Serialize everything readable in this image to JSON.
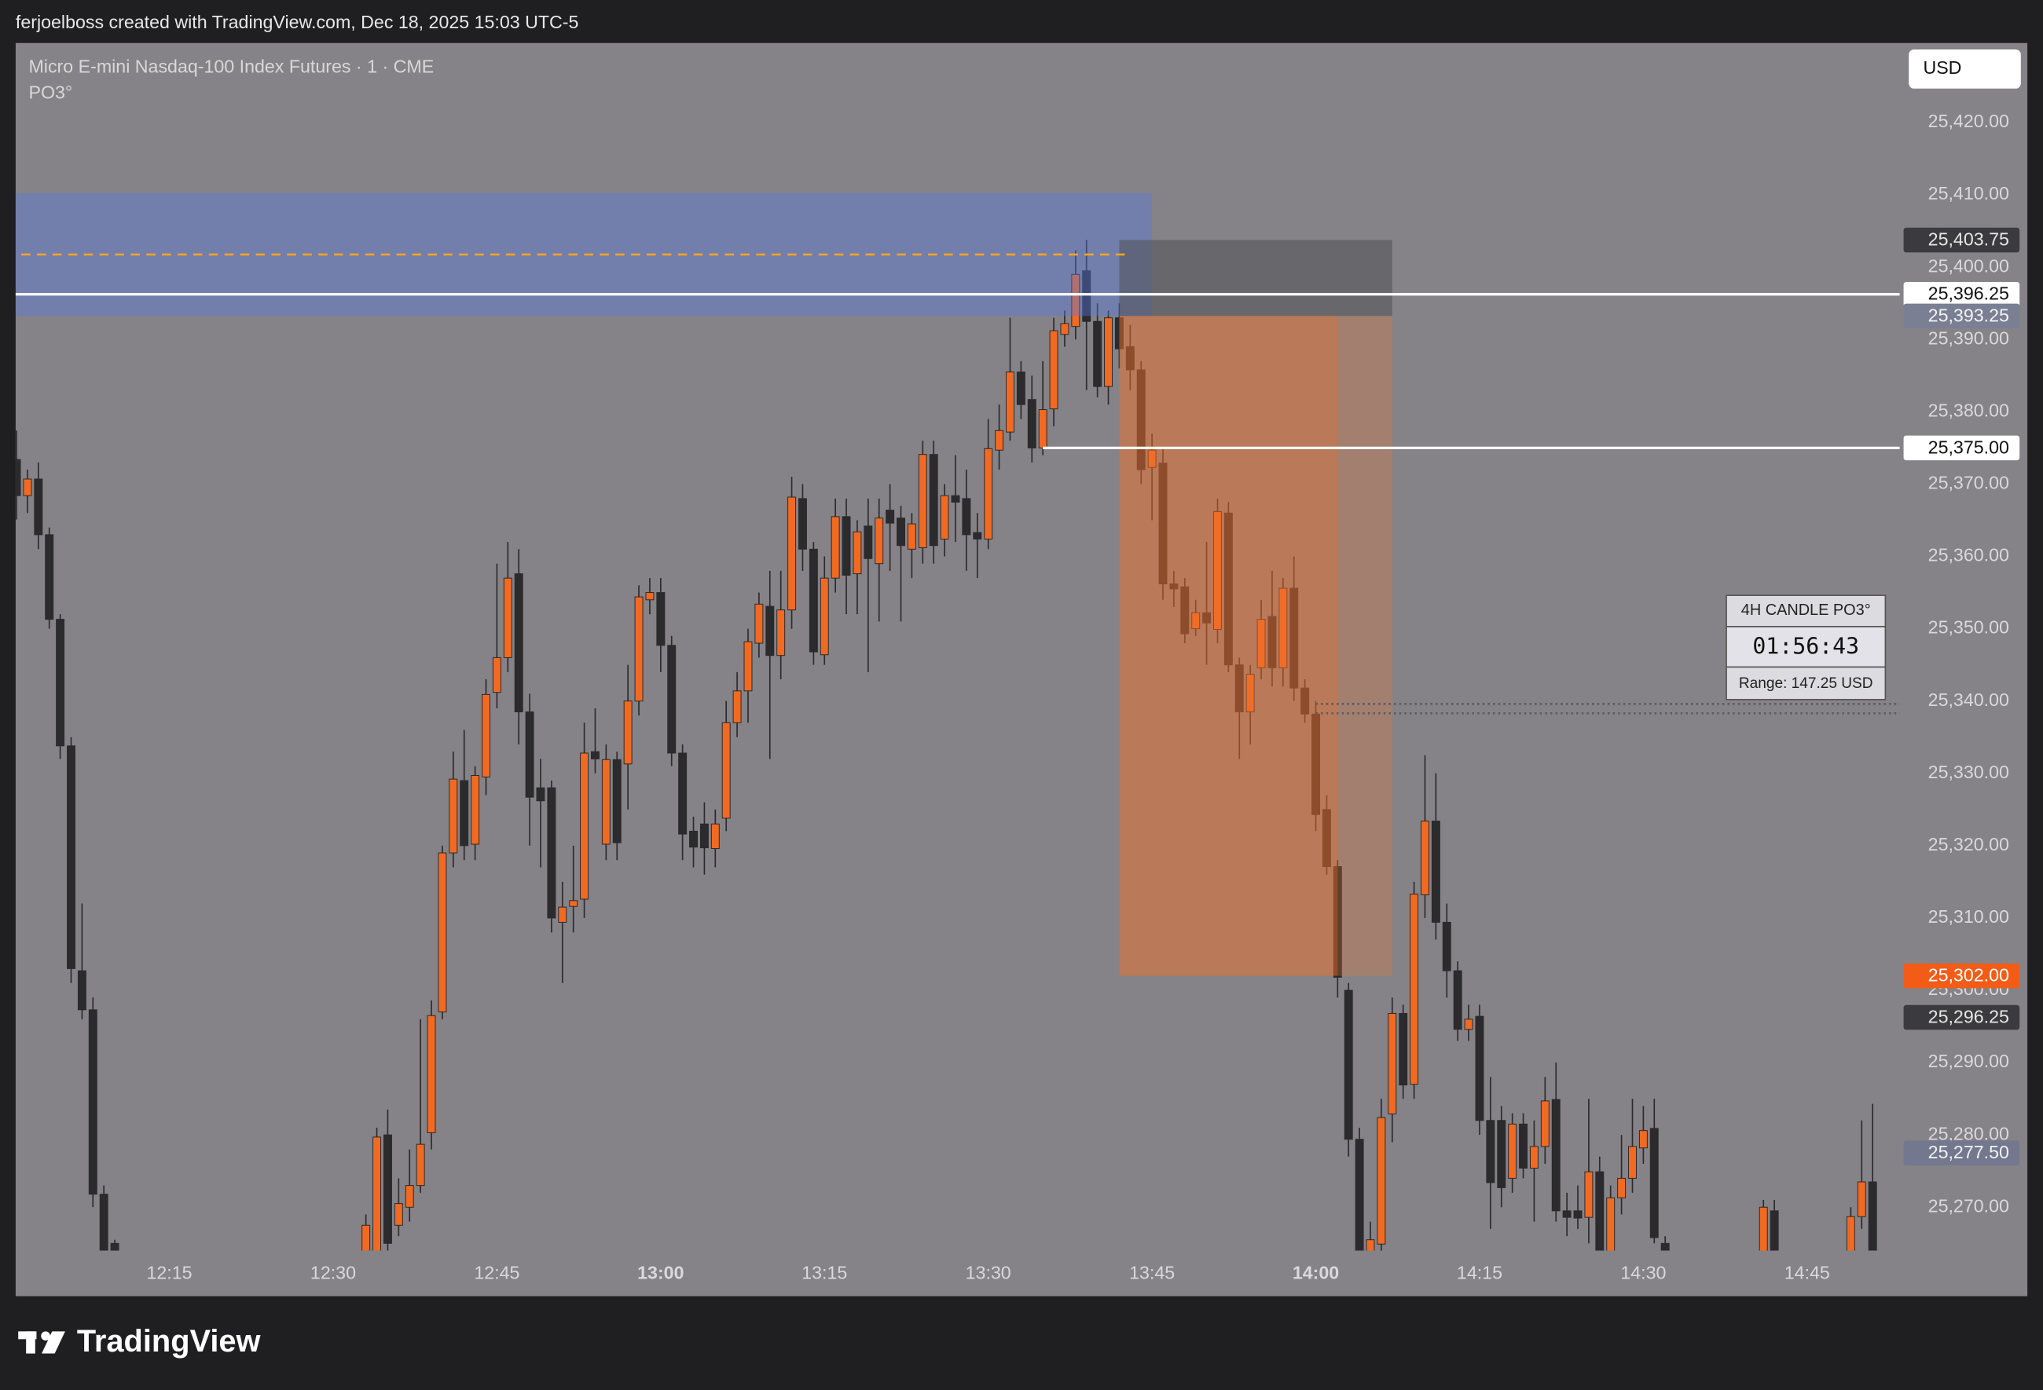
{
  "header": {
    "text": "ferjoelboss created with TradingView.com, Dec 18, 2025 15:03 UTC-5"
  },
  "legend": {
    "symbol": "Micro E-mini Nasdaq-100 Index Futures · 1 · CME",
    "indicator": "PO3°"
  },
  "currency_button": "USD",
  "indicator_panel": {
    "title": "4H CANDLE PO3°",
    "timer": "01:56:43",
    "range": "Range: 147.25 USD"
  },
  "footer": {
    "brand": "TradingView"
  },
  "chart_data": {
    "type": "candlestick",
    "up_color": "#f26a21",
    "down_color": "#2b2a2c",
    "wick_color": "#2b2a2c",
    "xlim": [
      "12:00",
      "14:53"
    ],
    "ylim": [
      25264,
      25431
    ],
    "grid": false,
    "xticks": [
      "12:15",
      "12:30",
      "12:45",
      "13:00",
      "13:15",
      "13:30",
      "13:45",
      "14:00",
      "14:15",
      "14:30",
      "14:45"
    ],
    "yticks": [
      {
        "value": 25270,
        "label": "25,270.00"
      },
      {
        "value": 25280,
        "label": "25,280.00"
      },
      {
        "value": 25290,
        "label": "25,290.00"
      },
      {
        "value": 25300,
        "label": "25,300.00"
      },
      {
        "value": 25310,
        "label": "25,310.00"
      },
      {
        "value": 25320,
        "label": "25,320.00"
      },
      {
        "value": 25330,
        "label": "25,330.00"
      },
      {
        "value": 25340,
        "label": "25,340.00"
      },
      {
        "value": 25350,
        "label": "25,350.00"
      },
      {
        "value": 25360,
        "label": "25,360.00"
      },
      {
        "value": 25370,
        "label": "25,370.00"
      },
      {
        "value": 25380,
        "label": "25,380.00"
      },
      {
        "value": 25390,
        "label": "25,390.00"
      },
      {
        "value": 25400,
        "label": "25,400.00"
      },
      {
        "value": 25410,
        "label": "25,410.00"
      },
      {
        "value": 25420,
        "label": "25,420.00"
      }
    ],
    "x": [
      "12:01",
      "12:02",
      "12:03",
      "12:04",
      "12:05",
      "12:06",
      "12:07",
      "12:08",
      "12:09",
      "12:10",
      "12:33",
      "12:34",
      "12:35",
      "12:36",
      "12:37",
      "12:38",
      "12:39",
      "12:40",
      "12:41",
      "12:42",
      "12:43",
      "12:44",
      "12:45",
      "12:46",
      "12:47",
      "12:48",
      "12:49",
      "12:50",
      "12:51",
      "12:52",
      "12:53",
      "12:54",
      "12:55",
      "12:56",
      "12:57",
      "12:58",
      "12:59",
      "13:00",
      "13:01",
      "13:02",
      "13:03",
      "13:04",
      "13:05",
      "13:06",
      "13:07",
      "13:08",
      "13:09",
      "13:10",
      "13:11",
      "13:12",
      "13:13",
      "13:14",
      "13:15",
      "13:16",
      "13:17",
      "13:18",
      "13:19",
      "13:20",
      "13:21",
      "13:22",
      "13:23",
      "13:24",
      "13:25",
      "13:26",
      "13:27",
      "13:28",
      "13:29",
      "13:30",
      "13:31",
      "13:32",
      "13:33",
      "13:34",
      "13:35",
      "13:36",
      "13:37",
      "13:38",
      "13:39",
      "13:40",
      "13:41",
      "13:42",
      "13:43",
      "13:44",
      "13:45",
      "13:46",
      "13:47",
      "13:48",
      "13:49",
      "13:50",
      "13:51",
      "13:52",
      "13:53",
      "13:54",
      "13:55",
      "13:56",
      "13:57",
      "13:58",
      "13:59",
      "14:00",
      "14:01",
      "14:02",
      "14:03",
      "14:04",
      "14:05",
      "14:06",
      "14:07",
      "14:08",
      "14:09",
      "14:10",
      "14:11",
      "14:12",
      "14:13",
      "14:14",
      "14:15",
      "14:16",
      "14:17",
      "14:18",
      "14:19",
      "14:20",
      "14:21",
      "14:22",
      "14:23",
      "14:24",
      "14:25",
      "14:26",
      "14:27",
      "14:28",
      "14:29",
      "14:30",
      "14:31",
      "14:32",
      "14:41",
      "14:42",
      "14:49",
      "14:50",
      "14:51"
    ],
    "ohlc": [
      [
        25373.4,
        25377.4,
        25365.1,
        25368.4
      ],
      [
        25368.4,
        25372,
        25366,
        25370.7
      ],
      [
        25370.7,
        25373,
        25361,
        25363
      ],
      [
        25363,
        25364,
        25350,
        25351.3
      ],
      [
        25351.3,
        25352,
        25332,
        25333.8
      ],
      [
        25333.8,
        25335,
        25301,
        25303
      ],
      [
        25302.7,
        25312,
        25296,
        25297.3
      ],
      [
        25297.3,
        25299,
        25270,
        25271.8
      ],
      [
        25271.8,
        25273,
        25258,
        25262
      ],
      [
        25265,
        25265.5,
        25250,
        25255
      ],
      [
        25255,
        25269,
        25250,
        25267.5
      ],
      [
        25262,
        25281,
        25258,
        25279.7
      ],
      [
        25280,
        25283.5,
        25263,
        25265
      ],
      [
        25267.5,
        25274,
        25266,
        25270.5
      ],
      [
        25270,
        25278,
        25268,
        25273
      ],
      [
        25273,
        25296,
        25272,
        25278.7
      ],
      [
        25280.3,
        25298.6,
        25278,
        25296.5
      ],
      [
        25297,
        25320,
        25296,
        25319
      ],
      [
        25319,
        25333,
        25317,
        25329.2
      ],
      [
        25329,
        25336,
        25318,
        25320
      ],
      [
        25320.2,
        25331,
        25318,
        25329.7
      ],
      [
        25329.5,
        25343,
        25327,
        25340.9
      ],
      [
        25341.2,
        25359,
        25339,
        25346
      ],
      [
        25346,
        25362,
        25344,
        25357
      ],
      [
        25357.6,
        25361,
        25334,
        25338.5
      ],
      [
        25338.5,
        25341,
        25320,
        25326.7
      ],
      [
        25328,
        25332,
        25317,
        25326.2
      ],
      [
        25328,
        25329,
        25308,
        25310
      ],
      [
        25309.4,
        25315,
        25301,
        25311.5
      ],
      [
        25311.6,
        25320,
        25308,
        25312.4
      ],
      [
        25312.6,
        25337,
        25310,
        25332.8
      ],
      [
        25333,
        25339,
        25330,
        25332
      ],
      [
        25320.2,
        25334,
        25318,
        25331.9
      ],
      [
        25331.9,
        25333,
        25318,
        25320.4
      ],
      [
        25331.3,
        25345,
        25325,
        25340
      ],
      [
        25340,
        25356,
        25338,
        25354.4
      ],
      [
        25354,
        25357,
        25352,
        25355
      ],
      [
        25355,
        25357,
        25344,
        25347.7
      ],
      [
        25347.7,
        25349,
        25331,
        25332.8
      ],
      [
        25332.8,
        25334,
        25318,
        25321.6
      ],
      [
        25322,
        25324,
        25317,
        25319.8
      ],
      [
        25323,
        25326,
        25316,
        25319.7
      ],
      [
        25319.6,
        25325,
        25317,
        25323
      ],
      [
        25323.8,
        25340,
        25322,
        25337
      ],
      [
        25337,
        25344,
        25335,
        25341.4
      ],
      [
        25341.4,
        25350,
        25337,
        25348.2
      ],
      [
        25348,
        25355,
        25346,
        25353.4
      ],
      [
        25353.1,
        25358,
        25332,
        25346.3
      ],
      [
        25346.3,
        25358,
        25343,
        25352.6
      ],
      [
        25352.6,
        25371,
        25350,
        25368.2
      ],
      [
        25368,
        25370,
        25358,
        25361
      ],
      [
        25361,
        25362,
        25345,
        25346.8
      ],
      [
        25346.4,
        25360,
        25345,
        25357
      ],
      [
        25357,
        25368,
        25355,
        25365.5
      ],
      [
        25365.5,
        25368,
        25352,
        25357.4
      ],
      [
        25357.6,
        25365,
        25352,
        25363.4
      ],
      [
        25364.2,
        25368,
        25344,
        25359.7
      ],
      [
        25359,
        25368,
        25351,
        25365.3
      ],
      [
        25366.4,
        25370,
        25358,
        25364.6
      ],
      [
        25365.3,
        25367,
        25351,
        25361.5
      ],
      [
        25361,
        25366,
        25357,
        25364.5
      ],
      [
        25361.2,
        25376,
        25359,
        25374.1
      ],
      [
        25374.1,
        25376,
        25359,
        25361.5
      ],
      [
        25362.4,
        25370,
        25360,
        25368.4
      ],
      [
        25368.4,
        25374,
        25362,
        25367.5
      ],
      [
        25368,
        25372,
        25358,
        25363
      ],
      [
        25363.3,
        25366,
        25357,
        25362.4
      ],
      [
        25362.4,
        25379,
        25361,
        25374.9
      ],
      [
        25374.7,
        25381,
        25372,
        25377.4
      ],
      [
        25377.2,
        25393,
        25376,
        25385.5
      ],
      [
        25385.5,
        25387,
        25379,
        25381
      ],
      [
        25381.7,
        25385,
        25373,
        25375
      ],
      [
        25375,
        25387,
        25374,
        25380.3
      ],
      [
        25380.4,
        25393,
        25378,
        25391.2
      ],
      [
        25390.7,
        25394,
        25389,
        25392.2
      ],
      [
        25391.8,
        25402.3,
        25390,
        25399
      ],
      [
        25399.5,
        25403.75,
        25383,
        25392.5
      ],
      [
        25392.5,
        25395,
        25382,
        25383.5
      ],
      [
        25383.5,
        25394,
        25381,
        25393
      ],
      [
        25393,
        25395,
        25386,
        25388.7
      ],
      [
        25389,
        25392,
        25383,
        25385.8
      ],
      [
        25385.8,
        25387,
        25370,
        25372
      ],
      [
        25372.3,
        25377,
        25365,
        25374.7
      ],
      [
        25372.9,
        25375,
        25354,
        25356.2
      ],
      [
        25356.2,
        25358,
        25353,
        25355.5
      ],
      [
        25355.8,
        25357,
        25348,
        25349.3
      ],
      [
        25350,
        25354,
        25349,
        25352.2
      ],
      [
        25352.2,
        25362,
        25345,
        25350.8
      ],
      [
        25349.9,
        25368,
        25348,
        25366.2
      ],
      [
        25366,
        25367.5,
        25344,
        25345
      ],
      [
        25345,
        25346,
        25332,
        25338.5
      ],
      [
        25338.5,
        25345,
        25334,
        25343.7
      ],
      [
        25344.6,
        25354,
        25343,
        25351.3
      ],
      [
        25351.7,
        25358,
        25342,
        25344.6
      ],
      [
        25344.6,
        25357,
        25342,
        25355.6
      ],
      [
        25355.6,
        25360,
        25340,
        25341.8
      ],
      [
        25341.8,
        25343,
        25337,
        25338.2
      ],
      [
        25338.2,
        25340,
        25322,
        25324.3
      ],
      [
        25325,
        25327,
        25316,
        25317.1
      ],
      [
        25317.1,
        25318,
        25299,
        25301.8
      ],
      [
        25300,
        25301,
        25277,
        25279.4
      ],
      [
        25279.4,
        25281,
        25252,
        25258
      ],
      [
        25258,
        25268,
        25255,
        25265.5
      ],
      [
        25264.9,
        25285,
        25263,
        25282.4
      ],
      [
        25282.9,
        25299,
        25279,
        25296.8
      ],
      [
        25296.8,
        25298,
        25285,
        25286.9
      ],
      [
        25287,
        25315,
        25285,
        25313.3
      ],
      [
        25313.2,
        25332.5,
        25310,
        25323.4
      ],
      [
        25323.4,
        25330,
        25307,
        25309.4
      ],
      [
        25309.4,
        25312,
        25299,
        25302.7
      ],
      [
        25302.7,
        25304,
        25293,
        25294.6
      ],
      [
        25294.6,
        25298,
        25293,
        25296
      ],
      [
        25296.4,
        25298,
        25280,
        25282
      ],
      [
        25282,
        25288,
        25267,
        25273.4
      ],
      [
        25282,
        25284,
        25270,
        25272.7
      ],
      [
        25274,
        25283,
        25272,
        25281.5
      ],
      [
        25281.5,
        25283,
        25274,
        25275.4
      ],
      [
        25275.4,
        25282,
        25268,
        25278.4
      ],
      [
        25278.4,
        25288,
        25276,
        25284.7
      ],
      [
        25284.9,
        25290,
        25268,
        25269.5
      ],
      [
        25269.5,
        25272,
        25266,
        25268.6
      ],
      [
        25269.5,
        25273,
        25267,
        25268.5
      ],
      [
        25268.6,
        25285,
        25265,
        25274.9
      ],
      [
        25274.9,
        25277,
        25255,
        25262
      ],
      [
        25262,
        25273,
        25258,
        25271.3
      ],
      [
        25271.3,
        25280,
        25269,
        25274
      ],
      [
        25274,
        25285,
        25272,
        25278.4
      ],
      [
        25278.2,
        25284,
        25276,
        25280.6
      ],
      [
        25280.9,
        25285,
        25265,
        25265.8
      ],
      [
        25265,
        25266,
        25255,
        25262
      ],
      [
        25262,
        25271,
        25258,
        25270
      ],
      [
        25269.5,
        25271,
        25255,
        25262
      ],
      [
        25262,
        25270,
        25258,
        25268.7
      ],
      [
        25268.7,
        25282,
        25267,
        25273.5
      ],
      [
        25273.5,
        25284.3,
        25258,
        25262
      ]
    ],
    "zones": [
      {
        "from": "12:00",
        "to": "13:45",
        "top": 25410.25,
        "bottom": 25393.25,
        "color": "rgba(88,118,222,0.42)"
      },
      {
        "from": "13:42",
        "to": "14:07",
        "top": 25403.75,
        "bottom": 25393.25,
        "color": "rgba(80,80,85,0.55)"
      },
      {
        "from": "13:42",
        "to": "14:07",
        "top": 25393.25,
        "bottom": 25302,
        "color": "rgba(236,120,50,0.28)"
      },
      {
        "from": "13:42",
        "to": "14:02",
        "top": 25393.25,
        "bottom": 25302,
        "color": "rgba(236,110,40,0.32)"
      }
    ],
    "lines": [
      {
        "value": 25401.75,
        "from": "12:00",
        "to": "13:43",
        "color": "#f7a325",
        "style": "dashed"
      },
      {
        "value": 25396.25,
        "from": "12:00",
        "color": "#ffffff",
        "style": "solid"
      },
      {
        "value": 25375,
        "from": "13:35",
        "color": "#ffffff",
        "style": "solid"
      },
      {
        "value": 25339.6,
        "from": "14:00",
        "color": "#5c5b60",
        "style": "dotted"
      },
      {
        "value": 25338.3,
        "from": "14:00",
        "color": "#5c5b60",
        "style": "dotted"
      }
    ],
    "price_labels": [
      {
        "value": 25403.75,
        "label": "25,403.75",
        "color": "#3b3a3e",
        "text_color": "#e6e6e6"
      },
      {
        "value": 25396.25,
        "label": "25,396.25",
        "color": "#ffffff",
        "text_color": "#111111"
      },
      {
        "value": 25393.25,
        "label": "25,393.25",
        "color": "#7b7f93",
        "text_color": "#f2f2f2"
      },
      {
        "value": 25375,
        "label": "25,375.00",
        "color": "#ffffff",
        "text_color": "#111111"
      },
      {
        "value": 25302,
        "label": "25,302.00",
        "color": "#f25c17",
        "text_color": "#ffffff"
      },
      {
        "value": 25296.25,
        "label": "25,296.25",
        "color": "#3b3a3e",
        "text_color": "#e6e6e6"
      },
      {
        "value": 25277.5,
        "label": "25,277.50",
        "color": "#74788e",
        "text_color": "#f2f2f2"
      }
    ]
  }
}
